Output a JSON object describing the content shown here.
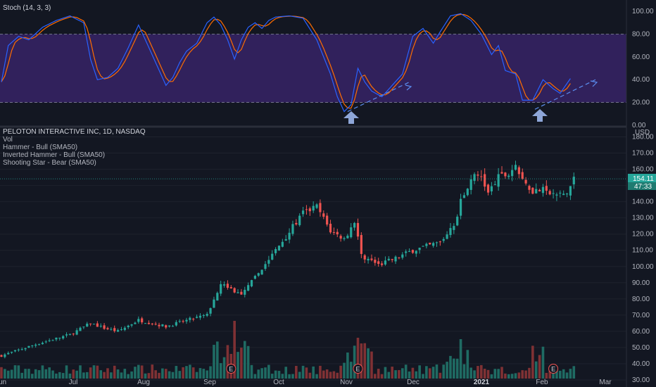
{
  "stoch_panel": {
    "label": "Stoch (14, 3, 3)",
    "y_ticks": [
      "100.00",
      "80.00",
      "60.00",
      "40.00",
      "20.00",
      "0.00"
    ],
    "upper_band": 80,
    "lower_band": 20,
    "colors": {
      "k": "#2962ff",
      "d": "#ff6d00",
      "band": "#4a2a8c"
    }
  },
  "price_panel": {
    "title": "PELOTON INTERACTIVE INC, 1D, NASDAQ",
    "indicators": [
      "Vol",
      "Hammer - Bull (SMA50)",
      "Inverted Hammer - Bull (SMA50)",
      "Shooting Star - Bear (SMA50)"
    ],
    "currency": "USD",
    "y_ticks": [
      "180.00",
      "170.00",
      "160.00",
      "150.00",
      "140.00",
      "130.00",
      "120.00",
      "110.00",
      "100.00",
      "90.00",
      "80.00",
      "70.00",
      "60.00",
      "50.00",
      "40.00",
      "30.00"
    ],
    "last_price": "154.11",
    "countdown": "47:33",
    "earnings_marker": "E",
    "colors": {
      "up": "#26a69a",
      "down": "#ef5350",
      "vol_up": "#1f6b63",
      "vol_down": "#7f3134",
      "accent": "#26a69a"
    }
  },
  "x_axis": {
    "labels": [
      "Jun",
      "Jul",
      "Aug",
      "Sep",
      "Oct",
      "Nov",
      "Dec",
      "2021",
      "Feb",
      "Mar"
    ]
  },
  "chart_data": {
    "type": "candlestick",
    "title": "PELOTON INTERACTIVE INC, 1D, NASDAQ",
    "x_range": [
      "Jun",
      "Mar"
    ],
    "ylim": [
      30,
      185
    ],
    "close_anchors": [
      {
        "t": 0,
        "close": 45
      },
      {
        "t": 10,
        "close": 52
      },
      {
        "t": 20,
        "close": 58
      },
      {
        "t": 26,
        "close": 65
      },
      {
        "t": 30,
        "close": 62
      },
      {
        "t": 34,
        "close": 60
      },
      {
        "t": 40,
        "close": 67
      },
      {
        "t": 44,
        "close": 65
      },
      {
        "t": 48,
        "close": 63
      },
      {
        "t": 56,
        "close": 68
      },
      {
        "t": 60,
        "close": 70
      },
      {
        "t": 64,
        "close": 90
      },
      {
        "t": 70,
        "close": 82
      },
      {
        "t": 75,
        "close": 96
      },
      {
        "t": 80,
        "close": 110
      },
      {
        "t": 88,
        "close": 133
      },
      {
        "t": 92,
        "close": 137
      },
      {
        "t": 96,
        "close": 122
      },
      {
        "t": 100,
        "close": 117
      },
      {
        "t": 103,
        "close": 128
      },
      {
        "t": 105,
        "close": 107
      },
      {
        "t": 110,
        "close": 101
      },
      {
        "t": 115,
        "close": 105
      },
      {
        "t": 120,
        "close": 110
      },
      {
        "t": 125,
        "close": 113
      },
      {
        "t": 128,
        "close": 115
      },
      {
        "t": 132,
        "close": 125
      },
      {
        "t": 134,
        "close": 140
      },
      {
        "t": 137,
        "close": 155
      },
      {
        "t": 140,
        "close": 156
      },
      {
        "t": 142,
        "close": 145
      },
      {
        "t": 145,
        "close": 155
      },
      {
        "t": 148,
        "close": 157
      },
      {
        "t": 150,
        "close": 163
      },
      {
        "t": 152,
        "close": 152
      },
      {
        "t": 155,
        "close": 147
      },
      {
        "t": 158,
        "close": 147
      },
      {
        "t": 161,
        "close": 144
      },
      {
        "t": 165,
        "close": 145
      },
      {
        "t": 167,
        "close": 154
      }
    ],
    "stoch_anchors": [
      {
        "t": 0,
        "k": 38
      },
      {
        "t": 2,
        "k": 70
      },
      {
        "t": 5,
        "k": 78
      },
      {
        "t": 8,
        "k": 75
      },
      {
        "t": 12,
        "k": 86
      },
      {
        "t": 16,
        "k": 92
      },
      {
        "t": 20,
        "k": 96
      },
      {
        "t": 24,
        "k": 90
      },
      {
        "t": 26,
        "k": 58
      },
      {
        "t": 28,
        "k": 40
      },
      {
        "t": 31,
        "k": 42
      },
      {
        "t": 34,
        "k": 50
      },
      {
        "t": 37,
        "k": 68
      },
      {
        "t": 40,
        "k": 88
      },
      {
        "t": 42,
        "k": 75
      },
      {
        "t": 45,
        "k": 55
      },
      {
        "t": 48,
        "k": 35
      },
      {
        "t": 50,
        "k": 42
      },
      {
        "t": 52,
        "k": 55
      },
      {
        "t": 54,
        "k": 65
      },
      {
        "t": 57,
        "k": 72
      },
      {
        "t": 60,
        "k": 90
      },
      {
        "t": 62,
        "k": 95
      },
      {
        "t": 64,
        "k": 88
      },
      {
        "t": 66,
        "k": 75
      },
      {
        "t": 68,
        "k": 58
      },
      {
        "t": 70,
        "k": 75
      },
      {
        "t": 72,
        "k": 86
      },
      {
        "t": 74,
        "k": 90
      },
      {
        "t": 76,
        "k": 85
      },
      {
        "t": 78,
        "k": 92
      },
      {
        "t": 80,
        "k": 95
      },
      {
        "t": 84,
        "k": 96
      },
      {
        "t": 88,
        "k": 94
      },
      {
        "t": 92,
        "k": 75
      },
      {
        "t": 96,
        "k": 45
      },
      {
        "t": 98,
        "k": 25
      },
      {
        "t": 100,
        "k": 12
      },
      {
        "t": 102,
        "k": 18
      },
      {
        "t": 104,
        "k": 50
      },
      {
        "t": 106,
        "k": 38
      },
      {
        "t": 108,
        "k": 30
      },
      {
        "t": 111,
        "k": 25
      },
      {
        "t": 114,
        "k": 35
      },
      {
        "t": 117,
        "k": 45
      },
      {
        "t": 120,
        "k": 78
      },
      {
        "t": 123,
        "k": 85
      },
      {
        "t": 126,
        "k": 72
      },
      {
        "t": 128,
        "k": 82
      },
      {
        "t": 131,
        "k": 96
      },
      {
        "t": 134,
        "k": 98
      },
      {
        "t": 137,
        "k": 92
      },
      {
        "t": 140,
        "k": 80
      },
      {
        "t": 143,
        "k": 62
      },
      {
        "t": 145,
        "k": 70
      },
      {
        "t": 147,
        "k": 48
      },
      {
        "t": 150,
        "k": 45
      },
      {
        "t": 152,
        "k": 22
      },
      {
        "t": 155,
        "k": 22
      },
      {
        "t": 158,
        "k": 40
      },
      {
        "t": 161,
        "k": 32
      },
      {
        "t": 163,
        "k": 28
      },
      {
        "t": 166,
        "k": 41
      }
    ]
  }
}
